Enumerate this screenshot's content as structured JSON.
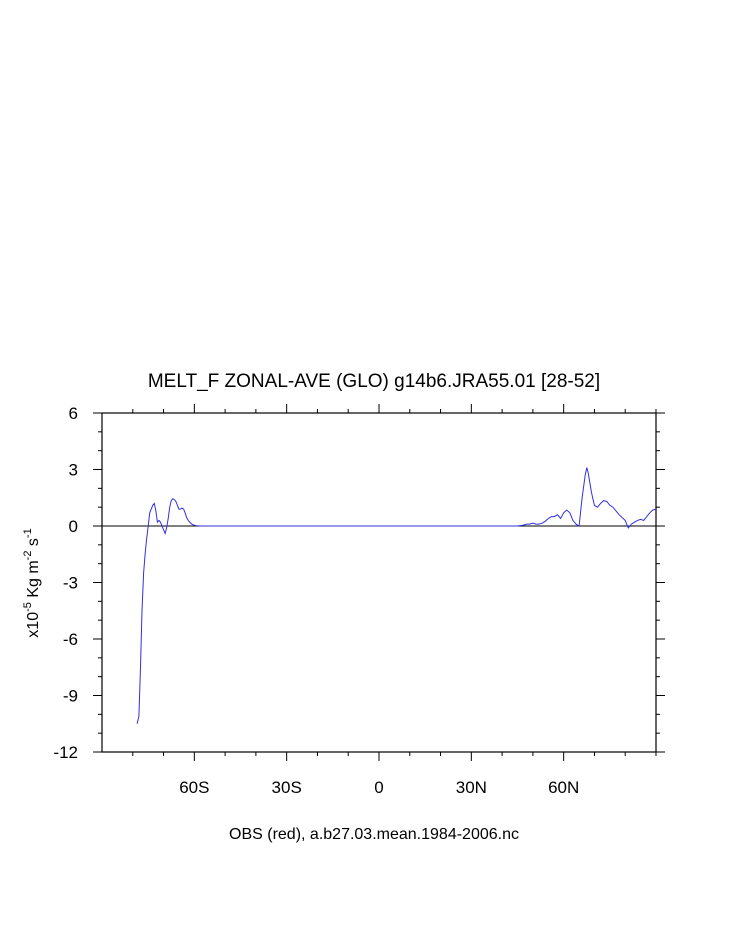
{
  "chart_data": {
    "type": "line",
    "title": "MELT_F ZONAL-AVE (GLO) g14b6.JRA55.01 [28-52]",
    "xlabel": "OBS (red), a.b27.03.mean.1984-2006.nc",
    "ylabel": {
      "prefix": "x10",
      "exp1": "-5",
      "unit1": " Kg m",
      "exp2": "-2",
      "unit2": " s",
      "exp3": "-1"
    },
    "xlim": [
      -90,
      90
    ],
    "ylim": [
      -12,
      6
    ],
    "x_major_ticks": [
      -60,
      -30,
      0,
      30,
      60
    ],
    "x_tick_labels": [
      "60S",
      "30S",
      "0",
      "30N",
      "60N"
    ],
    "y_major_ticks": [
      6,
      3,
      0,
      -3,
      -6,
      -9,
      -12
    ],
    "y_tick_labels": [
      "6",
      "3",
      "0",
      "-3",
      "-6",
      "-9",
      "-12"
    ],
    "zero_line": true,
    "series": [
      {
        "color": "#3030e0",
        "x": [
          -78.6,
          -78.0,
          -77.5,
          -77.0,
          -76.5,
          -76.0,
          -75.5,
          -75.0,
          -74.5,
          -74.0,
          -73.5,
          -73.0,
          -72.5,
          -72.0,
          -71.5,
          -71.0,
          -70.5,
          -70.0,
          -69.5,
          -69.0,
          -68.5,
          -68.0,
          -67.5,
          -67.0,
          -66.5,
          -66.0,
          -65.5,
          -65.0,
          -64.5,
          -64.0,
          -63.5,
          -63.0,
          -62.5,
          -62.0,
          -61.5,
          -61.0,
          -60.5,
          -60.0,
          -59.5,
          -59.0,
          -58.0,
          -57.0,
          -56.0,
          -55.0,
          -54.0,
          -52.0,
          -50.0,
          -40.0,
          -20.0,
          0.0,
          20.0,
          40.0,
          43.0,
          45.0,
          47.0,
          48.0,
          49.0,
          50.0,
          51.0,
          52.0,
          53.0,
          54.0,
          55.0,
          56.0,
          57.0,
          58.0,
          59.0,
          60.0,
          61.0,
          62.0,
          63.0,
          64.0,
          65.0,
          66.0,
          67.0,
          67.5,
          68.0,
          69.0,
          70.0,
          71.0,
          72.0,
          73.0,
          74.0,
          75.0,
          76.0,
          77.0,
          78.0,
          79.0,
          80.0,
          81.0,
          82.0,
          83.0,
          84.0,
          85.0,
          86.0,
          87.0,
          88.0,
          89.0,
          90.0
        ],
        "y": [
          -10.5,
          -10.1,
          -7.5,
          -4.5,
          -2.5,
          -1.5,
          -0.7,
          0.0,
          0.7,
          0.9,
          1.1,
          1.2,
          0.8,
          0.2,
          0.3,
          0.2,
          0.0,
          -0.2,
          -0.4,
          -0.1,
          0.4,
          1.0,
          1.35,
          1.45,
          1.4,
          1.3,
          1.1,
          0.9,
          0.9,
          0.95,
          0.9,
          0.7,
          0.45,
          0.3,
          0.2,
          0.12,
          0.07,
          0.04,
          0.02,
          0.01,
          0.0,
          0.0,
          0.0,
          0.0,
          0.0,
          0.0,
          0.0,
          0.0,
          0.0,
          0.0,
          0.0,
          0.0,
          0.0,
          0.0,
          0.05,
          0.1,
          0.1,
          0.15,
          0.1,
          0.1,
          0.15,
          0.25,
          0.4,
          0.5,
          0.5,
          0.6,
          0.4,
          0.7,
          0.85,
          0.7,
          0.3,
          0.1,
          0.0,
          1.5,
          2.7,
          3.1,
          2.8,
          1.8,
          1.1,
          1.0,
          1.2,
          1.35,
          1.3,
          1.1,
          1.0,
          0.8,
          0.6,
          0.45,
          0.3,
          -0.1,
          0.1,
          0.2,
          0.3,
          0.35,
          0.3,
          0.5,
          0.7,
          0.85,
          0.9
        ]
      }
    ]
  }
}
